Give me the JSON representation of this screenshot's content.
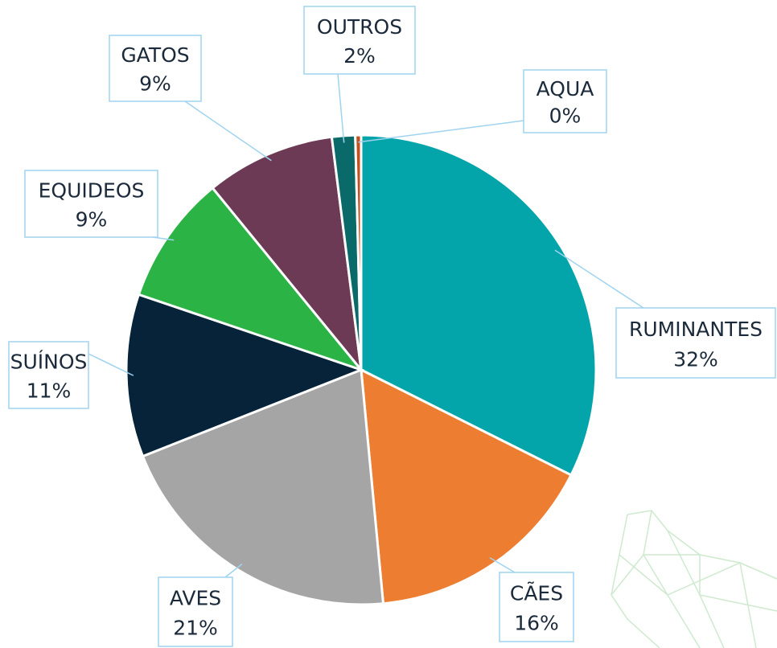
{
  "chart_data": {
    "type": "pie",
    "categories": [
      "RUMINANTES",
      "CÃES",
      "AVES",
      "SUÍNOS",
      "EQUIDEOS",
      "GATOS",
      "OUTROS",
      "AQUA"
    ],
    "values": [
      32.4,
      16.1,
      20.5,
      11.2,
      8.9,
      8.9,
      1.6,
      0.4
    ],
    "value_labels": [
      "32%",
      "16%",
      "21%",
      "11%",
      "9%",
      "9%",
      "2%",
      "0%"
    ],
    "colors": [
      "#04a5aa",
      "#ed7d31",
      "#a5a5a5",
      "#06233a",
      "#2bb345",
      "#6d3a55",
      "#0a6a6a",
      "#c0501f"
    ]
  }
}
